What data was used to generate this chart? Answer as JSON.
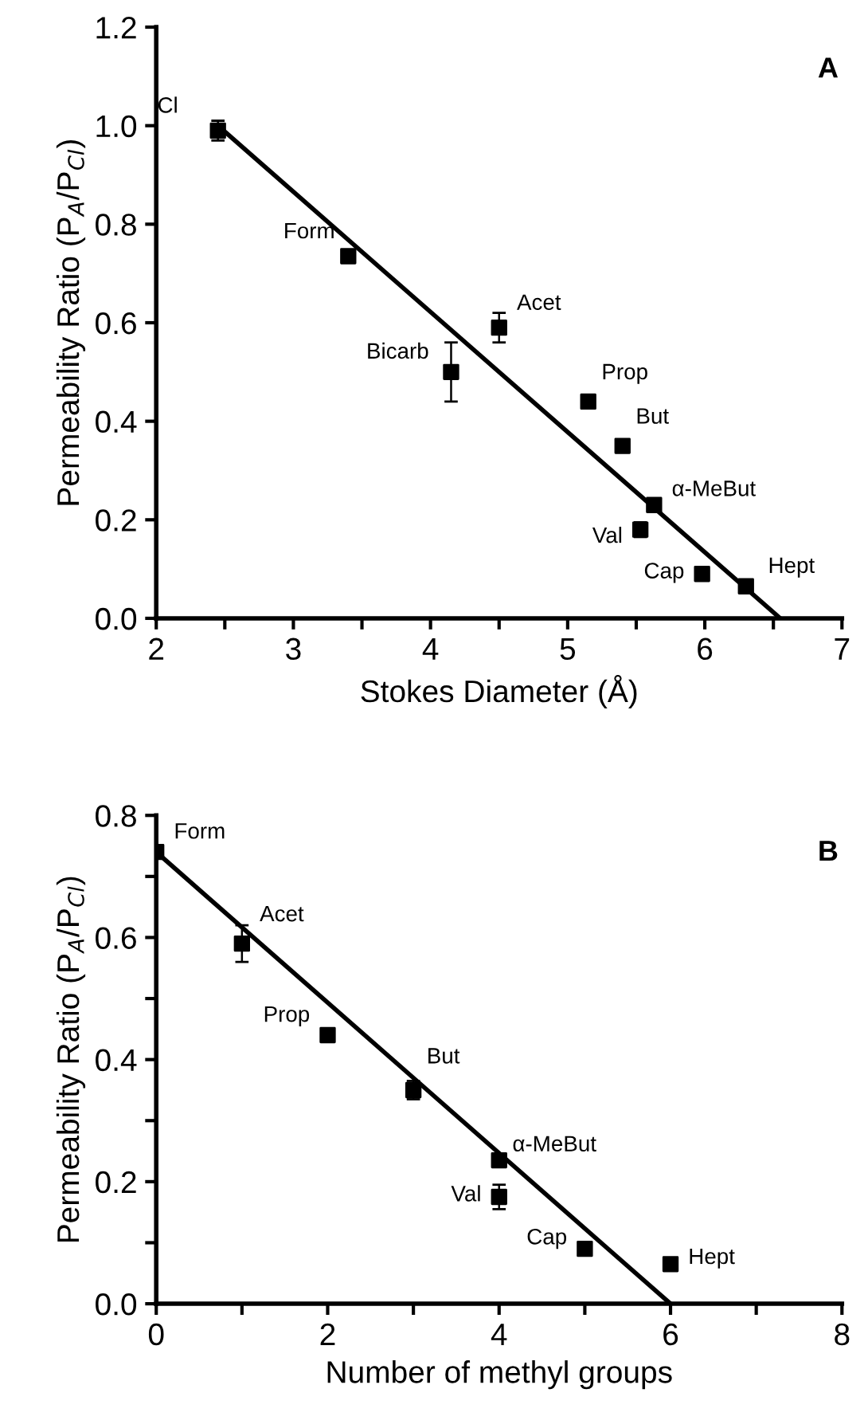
{
  "chart_data": [
    {
      "type": "scatter",
      "xlabel": "Stokes Diameter (Å)",
      "ylabel": "Permeability Ratio (P$_{A}$/P$_{Cl}$)",
      "xlim": [
        2,
        7
      ],
      "ylim": [
        0,
        1.2
      ],
      "xticks": [
        2,
        {
          "value": 2.5,
          "label": null
        },
        3,
        {
          "value": 3.5,
          "label": null
        },
        4,
        {
          "value": 4.5,
          "label": null
        },
        5,
        {
          "value": 5.5,
          "label": null
        },
        6,
        {
          "value": 6.5,
          "label": null
        },
        7
      ],
      "yticks": [
        {
          "value": 0,
          "label": "0.0"
        },
        0.2,
        0.4,
        0.6,
        0.8,
        {
          "value": 1,
          "label": "1.0"
        },
        1.2
      ],
      "grid": false,
      "legend": false,
      "series": [
        {
          "marker": "square",
          "color": "#000000",
          "x": [
            2.45,
            3.4,
            4.5,
            4.15,
            5.15,
            5.4,
            5.63,
            5.53,
            5.98,
            6.3
          ],
          "values": [
            0.99,
            0.735,
            0.59,
            0.5,
            0.44,
            0.35,
            0.23,
            0.18,
            0.09,
            0.065
          ],
          "errors": [
            0.02,
            null,
            0.03,
            0.06,
            null,
            null,
            null,
            0.015,
            null,
            null
          ]
        },
        {
          "type": "line",
          "color": "#000000",
          "x": [
            2.45,
            6.55
          ],
          "values": [
            1.0,
            0
          ]
        }
      ],
      "annotations": [
        {
          "text": "Cl",
          "x": 2.45,
          "y": 0.99
        },
        {
          "text": "Form",
          "x": 3.4,
          "y": 0.735
        },
        {
          "text": "Acet",
          "x": 4.5,
          "y": 0.59
        },
        {
          "text": "Bicarb",
          "x": 4.15,
          "y": 0.5
        },
        {
          "text": "Prop",
          "x": 5.15,
          "y": 0.44
        },
        {
          "text": "But",
          "x": 5.4,
          "y": 0.35
        },
        {
          "text": "α-MeBut",
          "x": 5.63,
          "y": 0.23
        },
        {
          "text": "Val",
          "x": 5.53,
          "y": 0.18
        },
        {
          "text": "Cap",
          "x": 5.98,
          "y": 0.09
        },
        {
          "text": "Hept",
          "x": 6.3,
          "y": 0.065
        },
        "A"
      ]
    },
    {
      "type": "scatter",
      "xlabel": "Number of methyl groups",
      "ylabel": "Permeability Ratio (P$_{A}$/P$_{Cl}$)",
      "xlim": [
        0,
        8
      ],
      "ylim": [
        0,
        0.8
      ],
      "xticks": [
        0,
        {
          "value": 1,
          "label": null
        },
        2,
        {
          "value": 3,
          "label": null
        },
        4,
        {
          "value": 5,
          "label": null
        },
        6,
        {
          "value": 7,
          "label": null
        },
        8
      ],
      "yticks": [
        {
          "value": 0,
          "label": "0.0"
        },
        {
          "value": 0.1,
          "label": null
        },
        0.2,
        {
          "value": 0.3,
          "label": null
        },
        0.4,
        {
          "value": 0.5,
          "label": null
        },
        0.6,
        {
          "value": 0.7,
          "label": null
        },
        0.8
      ],
      "grid": false,
      "legend": false,
      "series": [
        {
          "marker": "square",
          "color": "#000000",
          "x": [
            0,
            1,
            2,
            3,
            4,
            4,
            5,
            6
          ],
          "values": [
            0.74,
            0.59,
            0.44,
            0.35,
            0.235,
            0.175,
            0.09,
            0.065
          ],
          "errors": [
            null,
            0.03,
            null,
            0.015,
            0.01,
            0.02,
            null,
            null
          ]
        },
        {
          "type": "line",
          "color": "#000000",
          "x": [
            0,
            6
          ],
          "values": [
            0.74,
            0
          ]
        }
      ],
      "annotations": [
        {
          "text": "Form",
          "x": 0,
          "y": 0.74
        },
        {
          "text": "Acet",
          "x": 1,
          "y": 0.59
        },
        {
          "text": "Prop",
          "x": 2,
          "y": 0.44
        },
        {
          "text": "But",
          "x": 3,
          "y": 0.35
        },
        {
          "text": "α-MeBut",
          "x": 4,
          "y": 0.235
        },
        {
          "text": "Val",
          "x": 4,
          "y": 0.175
        },
        {
          "text": "Cap",
          "x": 5,
          "y": 0.09
        },
        {
          "text": "Hept",
          "x": 6,
          "y": 0.065
        },
        "B"
      ]
    }
  ]
}
